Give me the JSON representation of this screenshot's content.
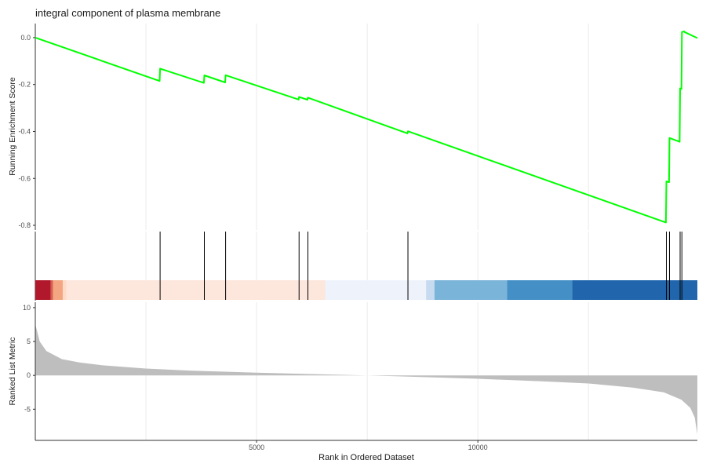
{
  "chart_data": {
    "type": "line",
    "title": "integral component of plasma membrane",
    "xlabel": "Rank in Ordered Dataset",
    "xlim": [
      0,
      14960
    ],
    "x_ticks": [
      5000,
      10000
    ],
    "x_tick_labels": [
      "5000",
      "10000"
    ],
    "grid": "vertical only",
    "panels": {
      "running_score": {
        "ylabel": "Running Enrichment Score",
        "ylim": [
          -0.82,
          0.06
        ],
        "y_ticks": [
          0.0,
          -0.2,
          -0.4,
          -0.6,
          -0.8
        ],
        "y_tick_labels": [
          "0.0",
          "-0.2",
          "-0.4",
          "-0.6",
          "-0.8"
        ],
        "line_color": "#00ff00",
        "x": [
          0,
          2810,
          2820,
          3810,
          3820,
          4290,
          4300,
          5950,
          5960,
          6150,
          6160,
          8410,
          8420,
          14250,
          14260,
          14320,
          14330,
          14560,
          14570,
          14600,
          14610,
          14660,
          14670,
          14960
        ],
        "y": [
          0.0,
          -0.185,
          -0.132,
          -0.193,
          -0.161,
          -0.191,
          -0.16,
          -0.264,
          -0.253,
          -0.265,
          -0.256,
          -0.408,
          -0.399,
          -0.788,
          -0.613,
          -0.616,
          -0.428,
          -0.444,
          -0.216,
          -0.219,
          0.024,
          0.027,
          0.024,
          -0.002
        ]
      },
      "hits": {
        "positions": [
          2820,
          3820,
          4300,
          5960,
          6160,
          8420,
          14260,
          14330,
          14570,
          14610
        ],
        "color": "#000000"
      },
      "rank_color_bar": {
        "segments": [
          {
            "start": 0,
            "end": 350,
            "color": "#b2182b"
          },
          {
            "start": 350,
            "end": 400,
            "color": "#d6604d"
          },
          {
            "start": 400,
            "end": 620,
            "color": "#f4a582"
          },
          {
            "start": 620,
            "end": 700,
            "color": "#fddbc7"
          },
          {
            "start": 700,
            "end": 6550,
            "color": "#fde6dc"
          },
          {
            "start": 6550,
            "end": 8830,
            "color": "#eef3fb"
          },
          {
            "start": 8830,
            "end": 9020,
            "color": "#c6dbef"
          },
          {
            "start": 9020,
            "end": 10660,
            "color": "#7bb4d9"
          },
          {
            "start": 10660,
            "end": 12130,
            "color": "#4490c6"
          },
          {
            "start": 12130,
            "end": 14960,
            "color": "#2166ac"
          }
        ]
      },
      "ranked_metric": {
        "ylabel": "Ranked List Metric",
        "ylim": [
          -9.6,
          10.8
        ],
        "y_ticks": [
          10,
          5,
          0,
          -5
        ],
        "y_tick_labels": [
          "10",
          "5",
          "0",
          "-5"
        ],
        "fill_color": "#bebebe",
        "x": [
          0,
          30,
          100,
          250,
          600,
          1000,
          1500,
          2500,
          3500,
          5000,
          6500,
          7500,
          8500,
          10000,
          11500,
          12500,
          13500,
          14200,
          14600,
          14800,
          14900,
          14960
        ],
        "y": [
          7.5,
          6.8,
          5.0,
          3.6,
          2.4,
          1.9,
          1.5,
          1.0,
          0.7,
          0.4,
          0.15,
          0.0,
          -0.2,
          -0.5,
          -0.9,
          -1.2,
          -1.8,
          -2.5,
          -3.6,
          -4.8,
          -6.2,
          -8.7
        ]
      }
    }
  }
}
